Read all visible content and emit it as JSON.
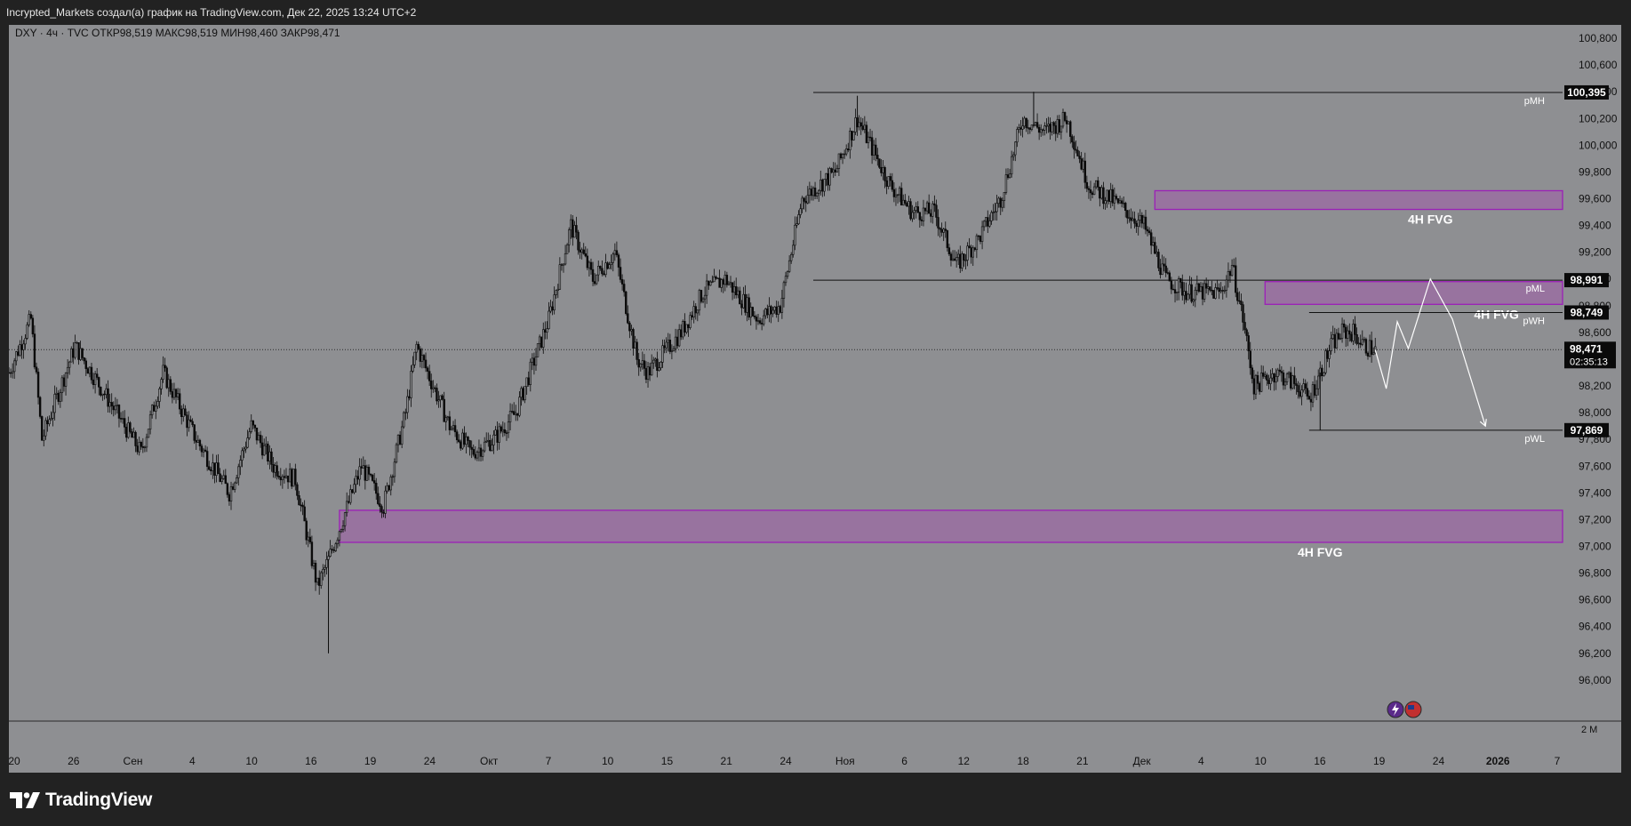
{
  "header": {
    "title": "Incrypted_Markets создал(а) график на TradingView.com, Дек 22, 2025 13:24 UTC+2"
  },
  "footer": {
    "brand": "TradingView",
    "logo_icon": "tradingview-logo-icon"
  },
  "colors": {
    "chart_bg": "#8e8f92",
    "frame_bg": "#222222",
    "candle": "#0b0b0b",
    "fvg_border": "#9c1fb8",
    "fvg_fill": "#9b6aa3",
    "label_dark": "#0a0a0a",
    "projection": "#ffffff"
  },
  "chart_data": {
    "type": "candlestick",
    "symbol_line": "DXY · 4ч · TVC",
    "ohlc": [
      {
        "label": "ОТКР",
        "value": "98,519"
      },
      {
        "label": "МАКС",
        "value": "98,519"
      },
      {
        "label": "МИН",
        "value": "98,460"
      },
      {
        "label": "ЗАКР",
        "value": "98,471"
      }
    ],
    "ylim": [
      95.7,
      100.9
    ],
    "y_ticks": [
      "100,800",
      "100,600",
      "100,400",
      "100,200",
      "100,000",
      "99,800",
      "99,600",
      "99,400",
      "99,200",
      "99,000",
      "98,800",
      "98,600",
      "98,400",
      "98,200",
      "98,000",
      "97,800",
      "97,600",
      "97,400",
      "97,200",
      "97,000",
      "96,800",
      "96,600",
      "96,400",
      "96,200",
      "96,000"
    ],
    "x_ticks": [
      "20",
      "26",
      "Сен",
      "4",
      "10",
      "16",
      "19",
      "24",
      "Окт",
      "7",
      "10",
      "15",
      "21",
      "24",
      "Ноя",
      "6",
      "12",
      "18",
      "21",
      "Дек",
      "4",
      "10",
      "16",
      "19",
      "24",
      "2026",
      "7"
    ],
    "x_start": "2025-08-20",
    "x_end": "2026-01-08",
    "last_bar": "2025-12-22",
    "path": [
      [
        "2025-08-20",
        98.3
      ],
      [
        "2025-08-22",
        98.7
      ],
      [
        "2025-08-23",
        97.8
      ],
      [
        "2025-08-26",
        98.5
      ],
      [
        "2025-08-29",
        98.1
      ],
      [
        "2025-09-01",
        97.7
      ],
      [
        "2025-09-03",
        98.3
      ],
      [
        "2025-09-06",
        97.8
      ],
      [
        "2025-09-09",
        97.4
      ],
      [
        "2025-09-11",
        97.9
      ],
      [
        "2025-09-13",
        97.6
      ],
      [
        "2025-09-15",
        97.5
      ],
      [
        "2025-09-17",
        96.7
      ],
      [
        "2025-09-18",
        96.9
      ],
      [
        "2025-09-21",
        97.6
      ],
      [
        "2025-09-23",
        97.3
      ],
      [
        "2025-09-25",
        98.0
      ],
      [
        "2025-09-26",
        98.5
      ],
      [
        "2025-09-29",
        97.9
      ],
      [
        "2025-10-01",
        97.7
      ],
      [
        "2025-10-03",
        97.8
      ],
      [
        "2025-10-05",
        98.0
      ],
      [
        "2025-10-08",
        98.7
      ],
      [
        "2025-10-10",
        99.4
      ],
      [
        "2025-10-12",
        99.0
      ],
      [
        "2025-10-14",
        99.2
      ],
      [
        "2025-10-16",
        98.4
      ],
      [
        "2025-10-17",
        98.3
      ],
      [
        "2025-10-20",
        98.6
      ],
      [
        "2025-10-22",
        98.9
      ],
      [
        "2025-10-24",
        99.0
      ],
      [
        "2025-10-27",
        98.7
      ],
      [
        "2025-10-29",
        98.8
      ],
      [
        "2025-10-31",
        99.6
      ],
      [
        "2025-11-03",
        99.8
      ],
      [
        "2025-11-05",
        100.2
      ],
      [
        "2025-11-08",
        99.7
      ],
      [
        "2025-11-10",
        99.5
      ],
      [
        "2025-11-12",
        99.5
      ],
      [
        "2025-11-14",
        99.1
      ],
      [
        "2025-11-16",
        99.3
      ],
      [
        "2025-11-18",
        99.6
      ],
      [
        "2025-11-20",
        100.2
      ],
      [
        "2025-11-22",
        100.1
      ],
      [
        "2025-11-24",
        100.2
      ],
      [
        "2025-11-26",
        99.7
      ],
      [
        "2025-11-28",
        99.6
      ],
      [
        "2025-12-01",
        99.4
      ],
      [
        "2025-12-03",
        99.0
      ],
      [
        "2025-12-05",
        98.9
      ],
      [
        "2025-12-08",
        98.9
      ],
      [
        "2025-12-09",
        99.1
      ],
      [
        "2025-12-10",
        98.7
      ],
      [
        "2025-12-11",
        98.2
      ],
      [
        "2025-12-13",
        98.3
      ],
      [
        "2025-12-15",
        98.2
      ],
      [
        "2025-12-16",
        98.1
      ],
      [
        "2025-12-17",
        98.3
      ],
      [
        "2025-12-18",
        98.5
      ],
      [
        "2025-12-19",
        98.6
      ],
      [
        "2025-12-20",
        98.6
      ],
      [
        "2025-12-21",
        98.5
      ],
      [
        "2025-12-22",
        98.47
      ]
    ],
    "spikes": [
      {
        "date": "2025-09-18",
        "low": 96.2
      },
      {
        "date": "2025-11-05",
        "high": 100.37
      },
      {
        "date": "2025-11-21",
        "high": 100.4
      },
      {
        "date": "2025-12-17",
        "low": 97.87
      }
    ],
    "levels": [
      {
        "name": "pMH",
        "value": 100.395,
        "from": "2025-11-01",
        "label": "100,395"
      },
      {
        "name": "pML",
        "value": 98.991,
        "from": "2025-11-01",
        "label": "98,991"
      },
      {
        "name": "pWH",
        "value": 98.749,
        "from": "2025-12-16",
        "label": "98,749"
      },
      {
        "name": "pWL",
        "value": 97.869,
        "from": "2025-12-16",
        "label": "97,869"
      }
    ],
    "zones": [
      {
        "top": 99.66,
        "bottom": 99.52,
        "from": "2025-12-02",
        "label": "4H FVG",
        "label_at": "2025-12-27"
      },
      {
        "top": 98.98,
        "bottom": 98.81,
        "from": "2025-12-12",
        "label": "4H FVG",
        "label_at": "2026-01-02"
      },
      {
        "top": 97.27,
        "bottom": 97.03,
        "from": "2025-09-19",
        "label": "4H FVG",
        "label_at": "2025-12-17"
      }
    ],
    "projection": [
      [
        "2025-12-22",
        98.47
      ],
      [
        "2025-12-23",
        98.18
      ],
      [
        "2025-12-24",
        98.68
      ],
      [
        "2025-12-25",
        98.48
      ],
      [
        "2025-12-27",
        99.0
      ],
      [
        "2025-12-29",
        98.7
      ],
      [
        "2026-01-01",
        97.9
      ]
    ],
    "current_price": {
      "value": 98.471,
      "label": "98,471",
      "countdown": "02:35:13"
    },
    "volume_axis_label": "2 М"
  }
}
